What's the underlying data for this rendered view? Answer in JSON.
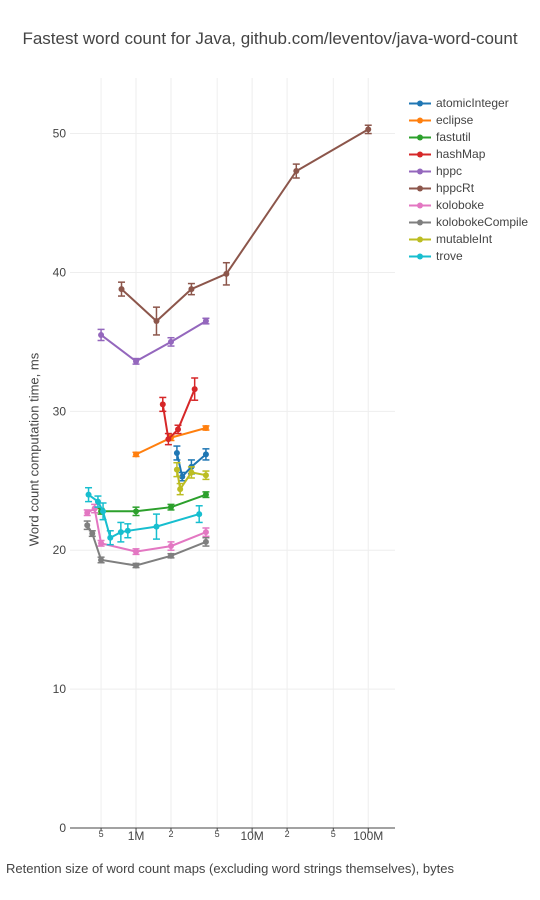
{
  "chart_data": {
    "type": "line",
    "title": "Fastest word count for Java, github.com/leventov/java-word-count",
    "xlabel": "Retention size of word count maps (excluding word strings themselves), bytes",
    "ylabel": "Word count computation time, ms",
    "x_scale": "log",
    "xlim": [
      270000,
      170000000
    ],
    "ylim": [
      0,
      54
    ],
    "x_ticks": [
      {
        "value": 500000,
        "label": "5"
      },
      {
        "value": 1000000,
        "label": "1M"
      },
      {
        "value": 2000000,
        "label": "2"
      },
      {
        "value": 5000000,
        "label": "5"
      },
      {
        "value": 10000000,
        "label": "10M"
      },
      {
        "value": 20000000,
        "label": "2"
      },
      {
        "value": 50000000,
        "label": "5"
      },
      {
        "value": 100000000,
        "label": "100M"
      }
    ],
    "y_ticks": [
      {
        "value": 0,
        "label": "0"
      },
      {
        "value": 10,
        "label": "10"
      },
      {
        "value": 20,
        "label": "20"
      },
      {
        "value": 30,
        "label": "30"
      },
      {
        "value": 40,
        "label": "40"
      },
      {
        "value": 50,
        "label": "50"
      }
    ],
    "grid": true,
    "legend_position": "top-right",
    "series": [
      {
        "name": "atomicInteger",
        "color": "#1f77b4",
        "points": [
          [
            2250000,
            27.0,
            0.5
          ],
          [
            2500000,
            25.3,
            0.3
          ],
          [
            3000000,
            26.0,
            0.5
          ],
          [
            4000000,
            26.9,
            0.4
          ]
        ]
      },
      {
        "name": "eclipse",
        "color": "#ff7f0e",
        "points": [
          [
            1000000,
            26.9,
            0.15
          ],
          [
            2000000,
            28.1,
            0.2
          ],
          [
            4000000,
            28.8,
            0.15
          ]
        ]
      },
      {
        "name": "fastutil",
        "color": "#2ca02c",
        "points": [
          [
            500000,
            22.8,
            0.2
          ],
          [
            1000000,
            22.8,
            0.3
          ],
          [
            2000000,
            23.1,
            0.2
          ],
          [
            4000000,
            24.0,
            0.2
          ]
        ]
      },
      {
        "name": "hashMap",
        "color": "#d62728",
        "points": [
          [
            1700000,
            30.5,
            0.5
          ],
          [
            1900000,
            28.0,
            0.4
          ],
          [
            2300000,
            28.7,
            0.3
          ],
          [
            3200000,
            31.6,
            0.8
          ]
        ]
      },
      {
        "name": "hppc",
        "color": "#9467bd",
        "points": [
          [
            500000,
            35.5,
            0.4
          ],
          [
            1000000,
            33.6,
            0.2
          ],
          [
            2000000,
            35.0,
            0.3
          ],
          [
            4000000,
            36.5,
            0.2
          ]
        ]
      },
      {
        "name": "hppcRt",
        "color": "#8c564b",
        "points": [
          [
            750000,
            38.8,
            0.5
          ],
          [
            1500000,
            36.5,
            1.0
          ],
          [
            3000000,
            38.8,
            0.4
          ],
          [
            6000000,
            39.9,
            0.8
          ],
          [
            24000000,
            47.3,
            0.5
          ],
          [
            100000000,
            50.3,
            0.3
          ]
        ]
      },
      {
        "name": "koloboke",
        "color": "#e377c2",
        "points": [
          [
            380000,
            22.7,
            0.2
          ],
          [
            440000,
            23.0,
            0.3
          ],
          [
            500000,
            20.5,
            0.2
          ],
          [
            1000000,
            19.9,
            0.2
          ],
          [
            2000000,
            20.3,
            0.3
          ],
          [
            4000000,
            21.3,
            0.3
          ]
        ]
      },
      {
        "name": "kolobokeCompile",
        "color": "#7f7f7f",
        "points": [
          [
            380000,
            21.8,
            0.3
          ],
          [
            420000,
            21.2,
            0.2
          ],
          [
            500000,
            19.3,
            0.2
          ],
          [
            1000000,
            18.9,
            0.15
          ],
          [
            2000000,
            19.6,
            0.15
          ],
          [
            4000000,
            20.6,
            0.3
          ]
        ]
      },
      {
        "name": "mutableInt",
        "color": "#bcbd22",
        "points": [
          [
            2250000,
            25.8,
            0.5
          ],
          [
            2400000,
            24.4,
            0.4
          ],
          [
            3000000,
            25.6,
            0.4
          ],
          [
            4000000,
            25.4,
            0.3
          ]
        ]
      },
      {
        "name": "trove",
        "color": "#17becf",
        "points": [
          [
            390000,
            24.0,
            0.5
          ],
          [
            470000,
            23.5,
            0.4
          ],
          [
            520000,
            22.8,
            0.6
          ],
          [
            600000,
            20.9,
            0.5
          ],
          [
            740000,
            21.3,
            0.7
          ],
          [
            850000,
            21.4,
            0.5
          ],
          [
            1500000,
            21.7,
            0.9
          ],
          [
            3500000,
            22.6,
            0.6
          ]
        ]
      }
    ]
  }
}
